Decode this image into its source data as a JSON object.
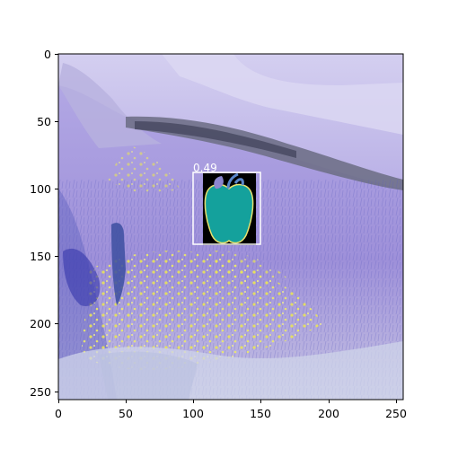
{
  "axes": {
    "x_ticks": [
      "0",
      "50",
      "100",
      "150",
      "200",
      "250"
    ],
    "y_ticks": [
      "0",
      "50",
      "100",
      "150",
      "200",
      "250"
    ]
  },
  "detection": {
    "score": "0.49",
    "object": "apple-icon",
    "box_color": "#ffffff",
    "icon_fill": "#14a19c",
    "icon_outline": "#e7e26f",
    "leaf_color": "#8b86cf",
    "stem_color": "#5a86c9",
    "tile_bg": "#000000"
  },
  "image": {
    "description_colors": {
      "sky_lavender": "#c9c2ea",
      "rock_gray": "#8d8fa6",
      "field_purple": "#a79adf",
      "flowers_yellow": "#e9e457",
      "shadow_blue": "#3b3cad"
    }
  }
}
